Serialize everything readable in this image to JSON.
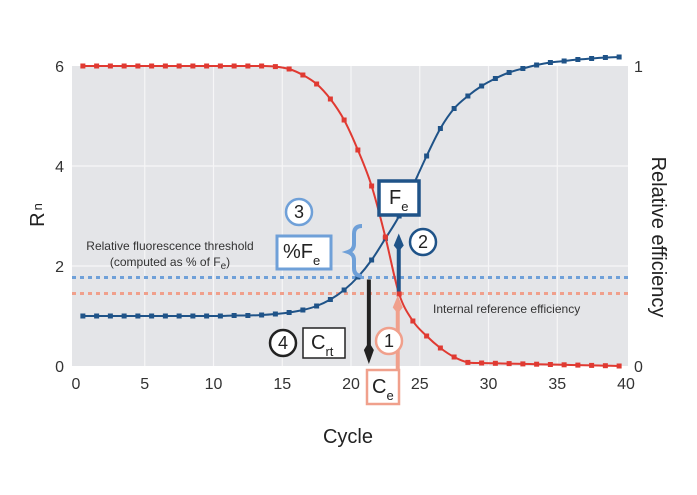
{
  "chart_data": {
    "type": "line",
    "title": "",
    "xlabel": "Cycle",
    "ylabel_left": "R",
    "ylabel_left_sub": "n",
    "ylabel_right": "Relative efficiency",
    "xlim": [
      0,
      40
    ],
    "ylim_left": [
      0,
      6
    ],
    "ylim_right": [
      0,
      1
    ],
    "x_ticks": [
      "0",
      "5",
      "10",
      "15",
      "20",
      "25",
      "30",
      "35",
      "40"
    ],
    "y_ticks_left": [
      "0",
      "2",
      "4",
      "6"
    ],
    "y_ticks_right": [
      "0",
      "1"
    ],
    "grid": true,
    "series": [
      {
        "name": "Rn (fluorescence)",
        "color": "#1f5388",
        "x": [
          0.5,
          1.5,
          2.5,
          3.5,
          4.5,
          5.5,
          6.5,
          7.5,
          8.5,
          9.5,
          10.5,
          11.5,
          12.5,
          13.5,
          14.5,
          15.5,
          16.5,
          17.5,
          18.5,
          19.5,
          20.5,
          21.5,
          22.5,
          23.5,
          24.5,
          25.5,
          26.5,
          27.5,
          28.5,
          29.5,
          30.5,
          31.5,
          32.5,
          33.5,
          34.5,
          35.5,
          36.5,
          37.5,
          38.5,
          39.5
        ],
        "values": [
          1.0,
          1.0,
          1.0,
          1.0,
          1.0,
          1.0,
          1.0,
          1.0,
          1.0,
          1.0,
          1.0,
          1.01,
          1.01,
          1.02,
          1.04,
          1.07,
          1.12,
          1.2,
          1.33,
          1.52,
          1.78,
          2.12,
          2.55,
          3.0,
          3.6,
          4.2,
          4.75,
          5.15,
          5.4,
          5.6,
          5.75,
          5.87,
          5.95,
          6.02,
          6.07,
          6.1,
          6.13,
          6.15,
          6.17,
          6.18
        ]
      },
      {
        "name": "Relative efficiency",
        "color": "#e03a32",
        "x": [
          0.5,
          1.5,
          2.5,
          3.5,
          4.5,
          5.5,
          6.5,
          7.5,
          8.5,
          9.5,
          10.5,
          11.5,
          12.5,
          13.5,
          14.5,
          15.5,
          16.5,
          17.5,
          18.5,
          19.5,
          20.5,
          21.5,
          22.5,
          23.5,
          24.5,
          25.5,
          26.5,
          27.5,
          28.5,
          29.5,
          30.5,
          31.5,
          32.5,
          33.5,
          34.5,
          35.5,
          36.5,
          37.5,
          38.5,
          39.5
        ],
        "values": [
          1.0,
          1.0,
          1.0,
          1.0,
          1.0,
          1.0,
          1.0,
          1.0,
          1.0,
          1.0,
          1.0,
          1.0,
          1.0,
          1.0,
          0.998,
          0.99,
          0.97,
          0.94,
          0.89,
          0.82,
          0.72,
          0.6,
          0.43,
          0.24,
          0.15,
          0.1,
          0.06,
          0.03,
          0.012,
          0.01,
          0.009,
          0.008,
          0.007,
          0.006,
          0.005,
          0.004,
          0.003,
          0.002,
          0.001,
          0.0
        ]
      }
    ],
    "thresholds": [
      {
        "name": "Relative fluorescence threshold",
        "value_left": 1.77,
        "color": "#6fa0d8"
      },
      {
        "name": "Internal reference efficiency",
        "value_left": 1.45,
        "color": "#f0a08c"
      }
    ],
    "markers": {
      "Ce_cycle": 23.4,
      "Crt_cycle": 21.3,
      "Fe_value": 2.85
    },
    "annotations": {
      "threshold_line1": "Relative fluorescence threshold",
      "threshold_line2": "(computed as % of F",
      "threshold_line2_sub": "e",
      "threshold_line2_end": ")",
      "internal_ref": "Internal reference efficiency",
      "step1": "1",
      "step2": "2",
      "step3": "3",
      "step4": "4",
      "box_Fe_main": "F",
      "box_Fe_sub": "e",
      "box_pctFe_main": "%F",
      "box_pctFe_sub": "e",
      "box_Crt_main": "C",
      "box_Crt_sub": "rt",
      "box_Ce_main": "C",
      "box_Ce_sub": "e"
    },
    "colors": {
      "plot_bg": "#e4e5e8",
      "grid": "#f6f6f7",
      "dark_blue": "#1f5388",
      "light_blue": "#6fa0d8",
      "red": "#e03a32",
      "salmon": "#f0a08c",
      "black": "#222222"
    }
  }
}
